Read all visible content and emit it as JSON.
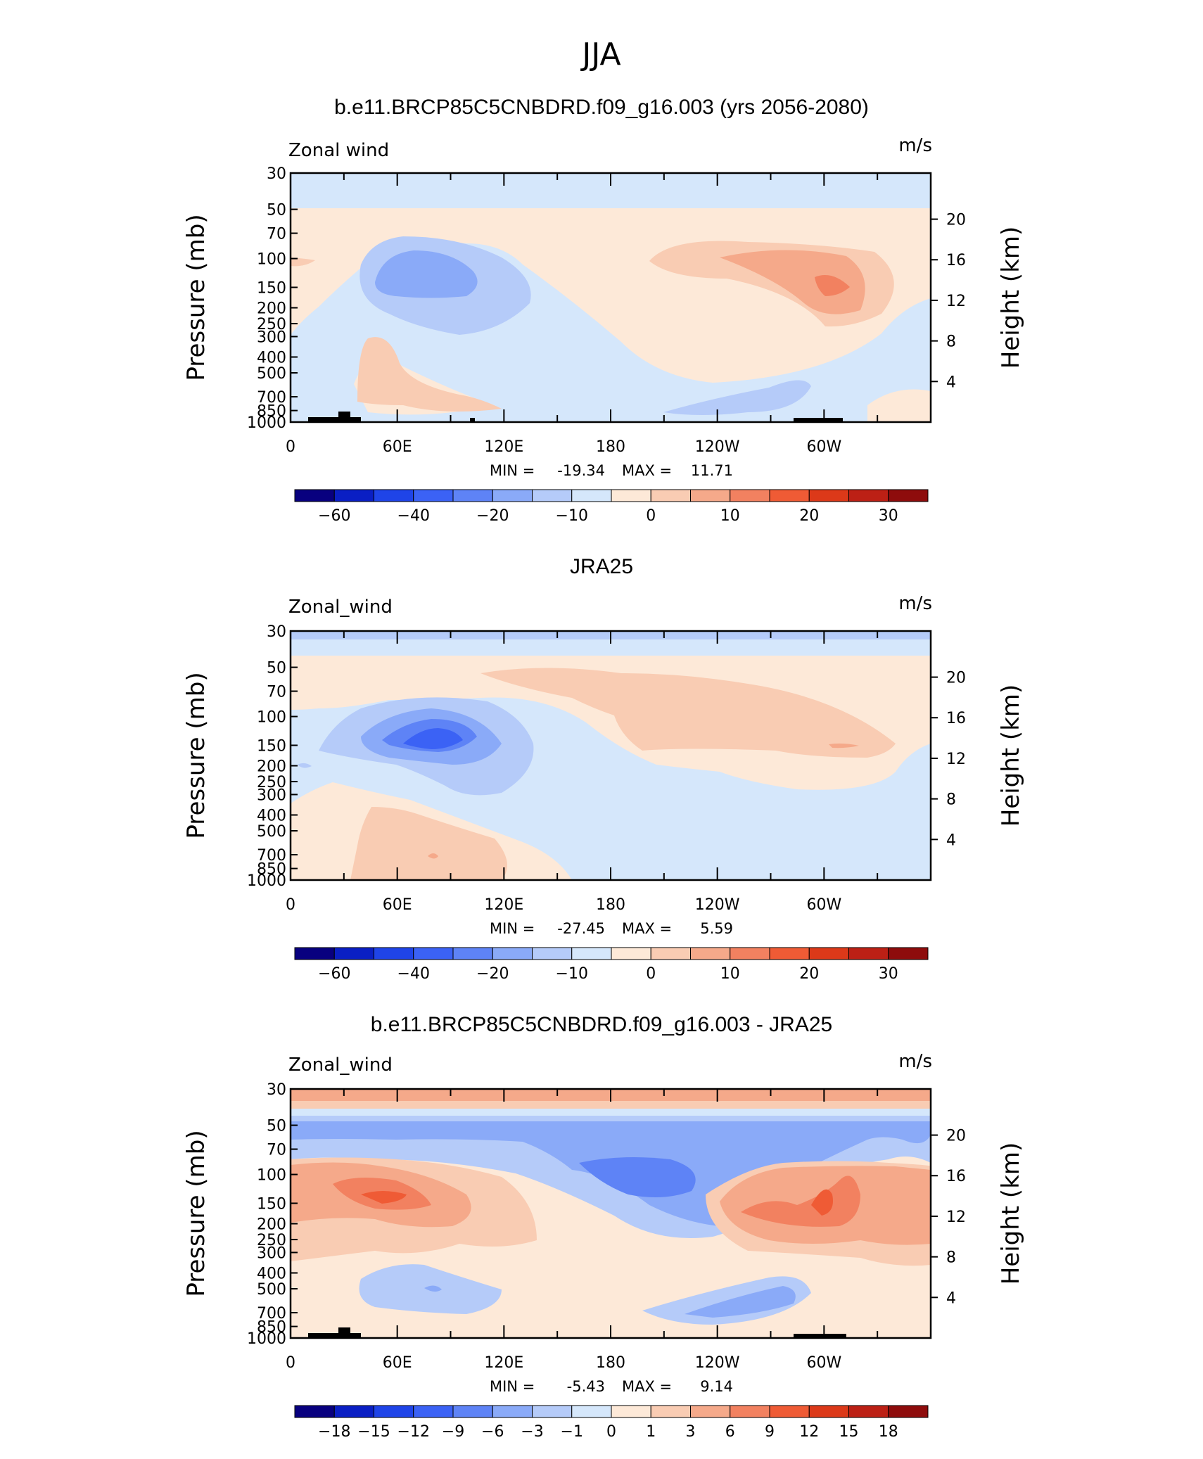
{
  "figure_title": "JJA",
  "chart_data": [
    {
      "type": "heatmap",
      "title": "b.e11.BRCP85C5CNBDRD.f09_g16.003 (yrs 2056-2080)",
      "variable": "Zonal wind",
      "units": "m/s",
      "ylabel": "Pressure (mb)",
      "ylabel_right": "Height (km)",
      "pressure_ticks": [
        "30",
        "50",
        "70",
        "100",
        "150",
        "200",
        "250",
        "300",
        "400",
        "500",
        "700",
        "850",
        "1000"
      ],
      "height_ticks": [
        "20",
        "16",
        "12",
        "8",
        "4"
      ],
      "lon_ticks": [
        "0",
        "60E",
        "120E",
        "180",
        "120W",
        "60W"
      ],
      "min_label": "MIN =",
      "min_value": "-19.34",
      "max_label": "MAX =",
      "max_value": "11.71",
      "colorbar_labels": [
        "-60",
        "-40",
        "-20",
        "-10",
        "0",
        "10",
        "20",
        "30"
      ],
      "features": [
        {
          "name": "easterly core ~75E 150mb",
          "value_range": [
            -20,
            -10
          ]
        },
        {
          "name": "westerly core ~70W 150mb",
          "value_range": [
            10,
            20
          ]
        }
      ]
    },
    {
      "type": "heatmap",
      "title": "JRA25",
      "variable": "Zonal_wind",
      "units": "m/s",
      "ylabel": "Pressure (mb)",
      "ylabel_right": "Height (km)",
      "pressure_ticks": [
        "30",
        "50",
        "70",
        "100",
        "150",
        "200",
        "250",
        "300",
        "400",
        "500",
        "700",
        "850",
        "1000"
      ],
      "height_ticks": [
        "20",
        "16",
        "12",
        "8",
        "4"
      ],
      "lon_ticks": [
        "0",
        "60E",
        "120E",
        "180",
        "120W",
        "60W"
      ],
      "min_label": "MIN =",
      "min_value": "-27.45",
      "max_label": "MAX =",
      "max_value": "5.59",
      "colorbar_labels": [
        "-60",
        "-40",
        "-20",
        "-10",
        "0",
        "10",
        "20",
        "30"
      ],
      "features": [
        {
          "name": "easterly core ~75E 150mb",
          "value_range": [
            -30,
            -20
          ]
        }
      ]
    },
    {
      "type": "heatmap",
      "title": "b.e11.BRCP85C5CNBDRD.f09_g16.003 - JRA25",
      "variable": "Zonal_wind",
      "units": "m/s",
      "ylabel": "Pressure (mb)",
      "ylabel_right": "Height (km)",
      "pressure_ticks": [
        "30",
        "50",
        "70",
        "100",
        "150",
        "200",
        "250",
        "300",
        "400",
        "500",
        "700",
        "850",
        "1000"
      ],
      "height_ticks": [
        "20",
        "16",
        "12",
        "8",
        "4"
      ],
      "lon_ticks": [
        "0",
        "60E",
        "120E",
        "180",
        "120W",
        "60W"
      ],
      "min_label": "MIN =",
      "min_value": "-5.43",
      "max_label": "MAX =",
      "max_value": "9.14",
      "colorbar_labels": [
        "-18",
        "-15",
        "-12",
        "-9",
        "-6",
        "-3",
        "-1",
        "0",
        "1",
        "3",
        "6",
        "9",
        "12",
        "15",
        "18"
      ]
    }
  ],
  "colors": {
    "bounds_abs": [
      "-70",
      "-60",
      "-50",
      "-40",
      "-30",
      "-20",
      "-15",
      "-10",
      "-5",
      "0",
      "5",
      "10",
      "15",
      "20",
      "25",
      "30",
      "35"
    ],
    "palette": [
      "#08007f",
      "#0a1fc4",
      "#1f44e8",
      "#3b62f5",
      "#5e83f6",
      "#8aaaf8",
      "#b5cbf9",
      "#d5e7fb",
      "#fde9d8",
      "#f9ccb3",
      "#f5a98a",
      "#f28160",
      "#ef5b35",
      "#dc3919",
      "#bc2015",
      "#8e0c0c"
    ]
  }
}
